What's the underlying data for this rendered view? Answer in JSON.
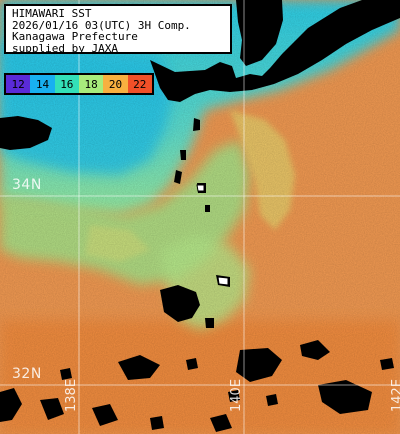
{
  "info": {
    "line1": "HIMAWARI SST",
    "line2": "2026/01/16 03(UTC) 3H Comp.",
    "line3": "Kanagawa Prefecture",
    "line4": "supplied by JAXA"
  },
  "scale": {
    "labels": [
      "12",
      "14",
      "16",
      "18",
      "20",
      "22"
    ],
    "colors": [
      "#5a2bd8",
      "#18b0f0",
      "#33e0b8",
      "#a8ec7c",
      "#f8b040",
      "#f05028"
    ]
  },
  "grid": {
    "lat_labels": [
      "34N",
      "32N"
    ],
    "lon_labels": [
      "138E",
      "140E",
      "142E"
    ]
  },
  "colors": {
    "land": "#000000",
    "warm_sea": "#f08f48",
    "mid_sea": "#a0e8a0",
    "cool_sea": "#3fd8e8"
  }
}
